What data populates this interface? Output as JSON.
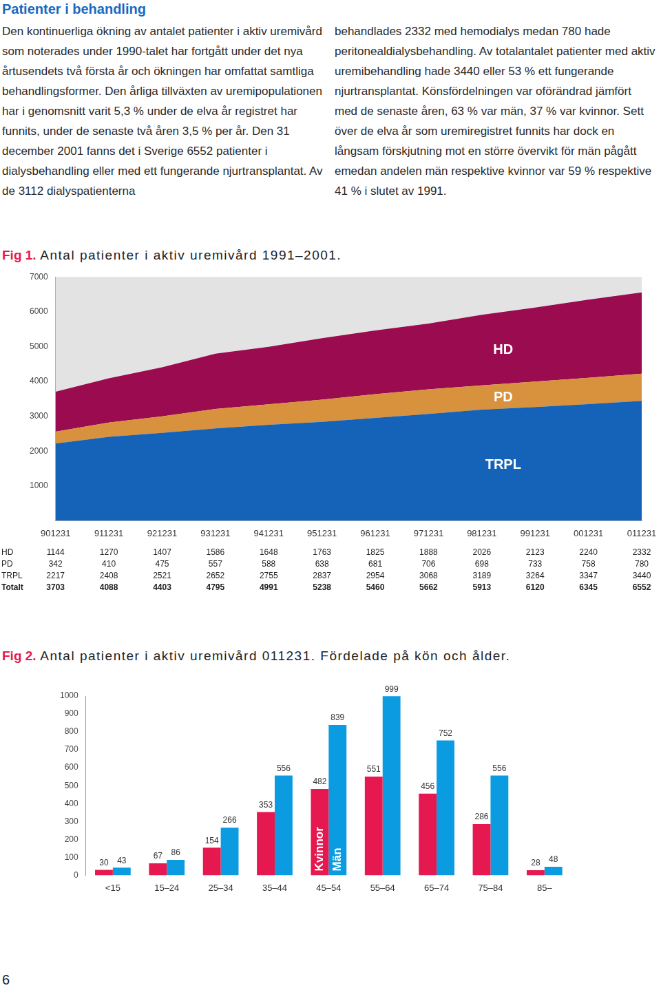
{
  "title": "Patienter i behandling",
  "columns": [
    "Den kontinuerliga ökning av antalet patienter i aktiv uremivård som noterades under 1990-talet har fortgått under det nya årtusendets två första år och ökningen har omfattat samtliga behandlingsformer. Den årliga tillväxten av uremipopulationen har i genomsnitt varit 5,3 % under de elva år registret har funnits, under de senaste två åren 3,5 % per år. Den 31 december 2001 fanns det i Sverige 6552 patienter i dialysbehandling eller med ett fungerande njurtransplantat. Av de 3112 dialyspatienterna",
    "behandlades 2332 med hemodialys medan 780 hade peritonealdialysbehandling. Av totalantalet patienter med aktiv uremibehandling hade 3440 eller 53 % ett fungerande njurtransplantat. Könsfördelningen var oförändrad jämfört med de senaste åren, 63 % var män, 37 % var kvinnor. Sett över de elva år som uremiregistret funnits har dock en långsam förskjutning mot en större övervikt för män pågått emedan andelen män respektive kvinnor var 59 % respektive 41 % i slutet av 1991."
  ],
  "chart_data": [
    {
      "type": "area",
      "title": "Fig 1. Antal patienter i aktiv uremivård 1991–2001.",
      "categories": [
        "901231",
        "911231",
        "921231",
        "931231",
        "941231",
        "951231",
        "961231",
        "971231",
        "981231",
        "991231",
        "001231",
        "011231"
      ],
      "series": [
        {
          "name": "HD",
          "color": "#9a0b4f",
          "values": [
            1144,
            1270,
            1407,
            1586,
            1648,
            1763,
            1825,
            1888,
            2026,
            2123,
            2240,
            2332
          ]
        },
        {
          "name": "PD",
          "color": "#d8923e",
          "values": [
            342,
            410,
            475,
            557,
            588,
            638,
            681,
            706,
            698,
            733,
            758,
            780
          ]
        },
        {
          "name": "TRPL",
          "color": "#1463b9",
          "values": [
            2217,
            2408,
            2521,
            2652,
            2755,
            2837,
            2954,
            3068,
            3189,
            3264,
            3347,
            3440
          ]
        }
      ],
      "stacked": true,
      "ylim": [
        0,
        7000
      ],
      "yticks": [
        1000,
        2000,
        3000,
        4000,
        5000,
        6000,
        7000
      ],
      "grid": false
    },
    {
      "type": "bar",
      "title": "Fig 2. Antal patienter i aktiv uremivård 011231. Fördelade på kön och ålder.",
      "categories": [
        "<15",
        "15–24",
        "25–34",
        "35–44",
        "45–54",
        "55–64",
        "65–74",
        "75–84",
        "85–"
      ],
      "series": [
        {
          "name": "Kvinnor",
          "color": "#e5194f",
          "values": [
            30,
            67,
            154,
            353,
            482,
            551,
            456,
            286,
            28
          ]
        },
        {
          "name": "Män",
          "color": "#0b9be0",
          "values": [
            43,
            86,
            266,
            556,
            839,
            999,
            752,
            556,
            48
          ]
        }
      ],
      "ylim": [
        0,
        1000
      ],
      "yticks": [
        0,
        100,
        200,
        300,
        400,
        500,
        600,
        700,
        800,
        900,
        1000
      ],
      "grid": false,
      "data_labels": true
    }
  ],
  "table": {
    "total_label": "Totalt",
    "totals": [
      3703,
      4088,
      4403,
      4795,
      4991,
      5238,
      5460,
      5662,
      5913,
      6120,
      6345,
      6552
    ]
  },
  "page_number": "6"
}
